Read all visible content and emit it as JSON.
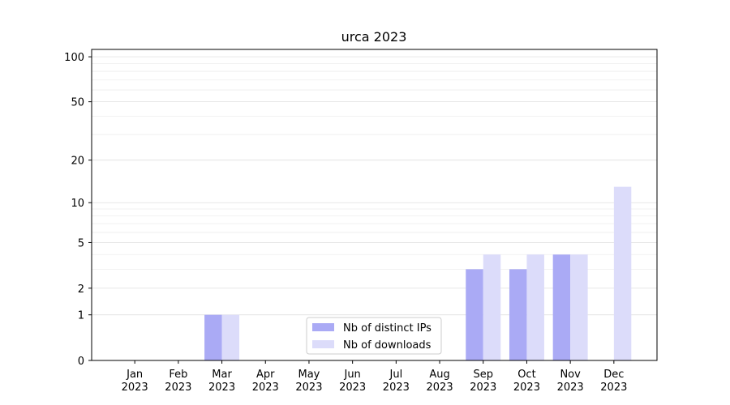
{
  "chart_data": {
    "type": "bar",
    "title": "urca 2023",
    "categories": [
      "Jan 2023",
      "Feb 2023",
      "Mar 2023",
      "Apr 2023",
      "May 2023",
      "Jun 2023",
      "Jul 2023",
      "Aug 2023",
      "Sep 2023",
      "Oct 2023",
      "Nov 2023",
      "Dec 2023"
    ],
    "series": [
      {
        "name": "Nb of distinct IPs",
        "color": "#aaaaf5",
        "values": [
          0,
          0,
          1,
          0,
          0,
          0,
          0,
          0,
          3,
          3,
          4,
          0
        ]
      },
      {
        "name": "Nb of downloads",
        "color": "#dcdcfa",
        "values": [
          0,
          0,
          1,
          0,
          0,
          0,
          0,
          0,
          4,
          4,
          4,
          13
        ]
      }
    ],
    "yscale": "log1p",
    "ylim": [
      0,
      112
    ],
    "yticks": [
      0,
      1,
      2,
      5,
      10,
      20,
      50,
      100
    ],
    "grid": true,
    "legend": "lower center"
  }
}
